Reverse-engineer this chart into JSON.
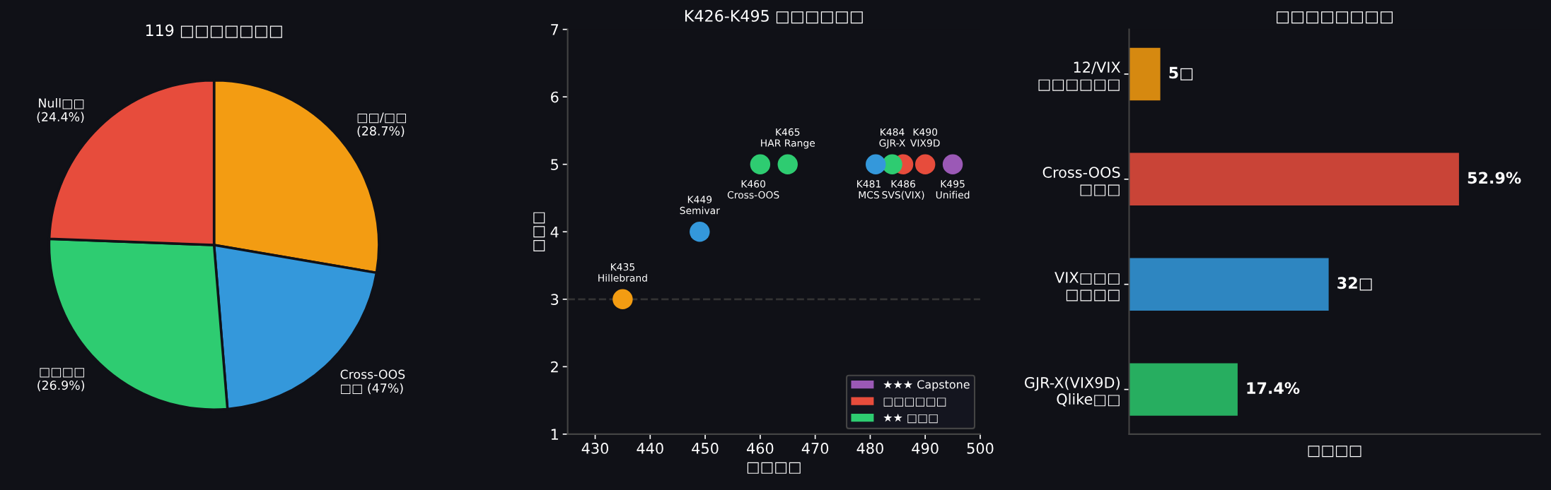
{
  "chart_data": [
    {
      "type": "pie",
      "title": "119 □□□□□□□",
      "categories": [
        "□□/□□\n(28.7%)",
        "Cross-OOS\n□□ (47%)",
        "□□□□\n(26.9%)",
        "Null□□\n(24.4%)"
      ],
      "values": [
        27.7,
        21.0,
        26.9,
        24.4
      ],
      "colors": [
        "#f39c12",
        "#3498db",
        "#2ecc71",
        "#e74c3c"
      ]
    },
    {
      "type": "scatter",
      "title": "K426-K495 □□□□□□",
      "xlabel": "□□□□",
      "ylabel": "□□□",
      "series": [
        {
          "name": "★★★ Capstone",
          "color": "#9b59b6",
          "x": [
            495
          ],
          "values": [
            5
          ]
        },
        {
          "name": "□□□□□□",
          "color": "#e74c3c",
          "x": [
            486,
            490
          ],
          "values": [
            5,
            5
          ]
        },
        {
          "name": "★★ □□□",
          "color": "#2ecc71",
          "x": [
            460,
            465,
            484
          ],
          "values": [
            5,
            5,
            5
          ]
        },
        {
          "color": "#3498db",
          "x": [
            449,
            481
          ],
          "values": [
            4,
            5
          ]
        },
        {
          "color": "#f39c12",
          "x": [
            435
          ],
          "values": [
            3
          ]
        }
      ],
      "annotations": [
        {
          "text": "K435\nHillebrand",
          "x": 435,
          "y": 3
        },
        {
          "text": "K449\nSemivar",
          "x": 449,
          "y": 4
        },
        {
          "text": "K460\nCross-OOS",
          "x": 460,
          "y": 5
        },
        {
          "text": "K465\nHAR Range",
          "x": 465,
          "y": 5
        },
        {
          "text": "K481\nMCS",
          "x": 481,
          "y": 5
        },
        {
          "text": "K484\nGJR-X",
          "x": 484,
          "y": 5
        },
        {
          "text": "K486\nSVS(VIX)",
          "x": 486,
          "y": 5
        },
        {
          "text": "K490\nVIX9D",
          "x": 490,
          "y": 5
        },
        {
          "text": "K495\nUnified",
          "x": 495,
          "y": 5
        }
      ],
      "ref_lines": [
        {
          "axis": "y",
          "value": 3,
          "color": "#333333",
          "line_style": "dashed"
        }
      ],
      "xlim": [
        425,
        500
      ],
      "xticks": [
        430,
        440,
        450,
        460,
        470,
        480,
        490,
        500
      ],
      "ylim": [
        1,
        7
      ],
      "yticks": [
        1,
        2,
        3,
        4,
        5,
        6,
        7
      ],
      "marker": "circle",
      "grid": false,
      "legend": "bottom right"
    },
    {
      "type": "bar",
      "orientation": "horizontal",
      "title": "□□□□□□□□",
      "xlabel": "□□□□",
      "categories": [
        "12/VIX\n□□□□□□",
        "Cross-OOS\n□□□",
        "VIX□□□\n□□□□",
        "GJR-X(VIX9D)\nQlike□□"
      ],
      "values": [
        5,
        52.9,
        32,
        17.4
      ],
      "colors": [
        "#d68910",
        "#c94437",
        "#2e86c1",
        "#27ae60"
      ],
      "value_labels": [
        "5□",
        "52.9%",
        "32□",
        "17.4%"
      ]
    }
  ]
}
